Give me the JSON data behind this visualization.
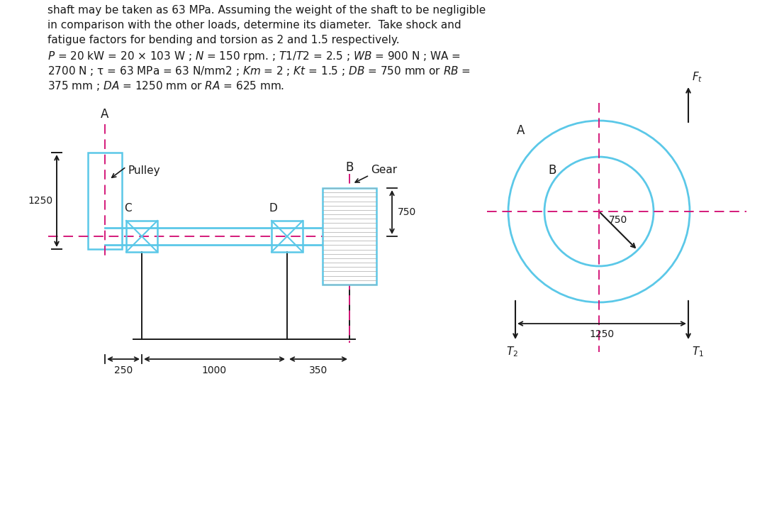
{
  "background_color": "#ffffff",
  "line_color": "#5bc8e8",
  "dashed_color": "#d4197a",
  "text_color": "#1a1a1a",
  "fig_width": 10.82,
  "fig_height": 7.13,
  "top_lines": [
    "shaft may be taken as 63 MPa. Assuming the weight of the shaft to be negligible",
    "in comparison with the other loads, determine its diameter.  Take shock and",
    "fatigue factors for bending and torsion as 2 and 1.5 respectively.",
    "$P$ = 20 kW = 20 × 103 W ; $N$ = 150 rpm. ; $T1/T2$ = 2.5 ; $\\mathit{WB}$ = 900 N ; WA =",
    "2700 N ; τ = 63 MPa = 63 N/mm2 ; $\\mathit{Km}$ = 2 ; $\\mathit{Kt}$ = 1.5 ; $\\mathit{DB}$ = 750 mm or $\\mathit{RB}$ =",
    "375 mm ; $\\mathit{DA}$ = 1250 mm or $\\mathit{RA}$ = 625 mm."
  ]
}
